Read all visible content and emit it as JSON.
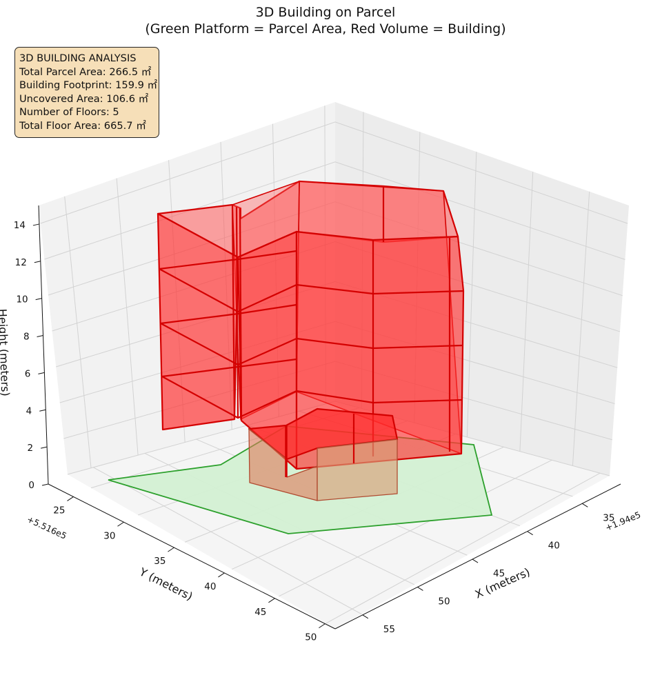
{
  "title_line1": "3D Building on Parcel",
  "title_line2": "(Green Platform = Parcel Area, Red Volume = Building)",
  "info": {
    "heading": "3D BUILDING ANALYSIS",
    "parcel_area": "Total Parcel Area: 266.5 ㎡",
    "footprint": "Building Footprint: 159.9 ㎡",
    "uncovered": "Uncovered Area: 106.6 ㎡",
    "floors": "Number of Floors: 5",
    "floor_area": "Total Floor Area: 665.7 ㎡"
  },
  "chart_data": {
    "type": "3d-surface",
    "xlabel": "X (meters)",
    "ylabel": "Y (meters)",
    "zlabel": "Height (meters)",
    "x_offset": "+1.94e5",
    "y_offset": "+5.516e5",
    "x_ticks": [
      35,
      40,
      45,
      50,
      55
    ],
    "y_ticks": [
      25,
      30,
      35,
      40,
      45,
      50
    ],
    "z_ticks": [
      0,
      2,
      4,
      6,
      8,
      10,
      12,
      14
    ],
    "zlim": [
      0,
      15
    ],
    "colors": {
      "parcel_fill": "#d3f0d3",
      "parcel_edge": "#2ca02c",
      "building_fill": "#ff0000",
      "building_edge": "#d40000",
      "pane": "#f2f2f2",
      "grid": "#d0d0d0"
    },
    "parcel": {
      "name": "Parcel Area",
      "area_m2": 266.5
    },
    "building": {
      "name": "Building",
      "footprint_m2": 159.9,
      "floors": 5,
      "total_floor_area_m2": 665.7,
      "levels_m": [
        0,
        3,
        6,
        9,
        12,
        15
      ]
    }
  }
}
